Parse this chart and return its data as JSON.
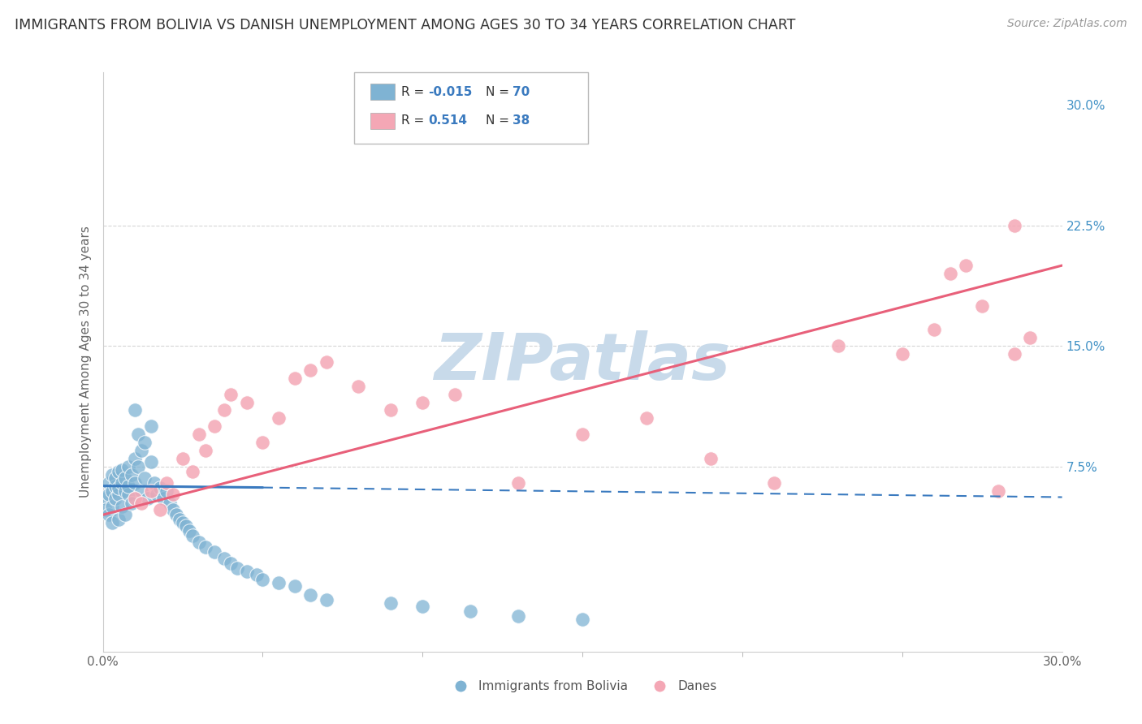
{
  "title": "IMMIGRANTS FROM BOLIVIA VS DANISH UNEMPLOYMENT AMONG AGES 30 TO 34 YEARS CORRELATION CHART",
  "source": "Source: ZipAtlas.com",
  "ylabel": "Unemployment Among Ages 30 to 34 years",
  "xlim": [
    0.0,
    0.3
  ],
  "ylim": [
    -0.04,
    0.32
  ],
  "legend_label1": "Immigrants from Bolivia",
  "legend_label2": "Danes",
  "R1": "-0.015",
  "N1": "70",
  "R2": "0.514",
  "N2": "38",
  "blue_color": "#7fb3d3",
  "pink_color": "#f4a7b5",
  "blue_line_color": "#3a7abf",
  "pink_line_color": "#e8607a",
  "grid_color": "#cccccc",
  "blue_scatter_x": [
    0.001,
    0.001,
    0.002,
    0.002,
    0.002,
    0.003,
    0.003,
    0.003,
    0.003,
    0.004,
    0.004,
    0.004,
    0.005,
    0.005,
    0.005,
    0.005,
    0.006,
    0.006,
    0.006,
    0.007,
    0.007,
    0.007,
    0.008,
    0.008,
    0.008,
    0.009,
    0.009,
    0.01,
    0.01,
    0.01,
    0.011,
    0.011,
    0.012,
    0.012,
    0.013,
    0.013,
    0.014,
    0.015,
    0.015,
    0.016,
    0.017,
    0.018,
    0.019,
    0.02,
    0.021,
    0.022,
    0.023,
    0.024,
    0.025,
    0.026,
    0.027,
    0.028,
    0.03,
    0.032,
    0.035,
    0.038,
    0.04,
    0.042,
    0.045,
    0.048,
    0.05,
    0.055,
    0.06,
    0.065,
    0.07,
    0.09,
    0.1,
    0.115,
    0.13,
    0.15
  ],
  "blue_scatter_y": [
    0.055,
    0.048,
    0.065,
    0.045,
    0.058,
    0.06,
    0.07,
    0.05,
    0.04,
    0.063,
    0.055,
    0.068,
    0.072,
    0.058,
    0.062,
    0.042,
    0.065,
    0.073,
    0.05,
    0.068,
    0.06,
    0.045,
    0.075,
    0.058,
    0.063,
    0.07,
    0.052,
    0.11,
    0.08,
    0.065,
    0.095,
    0.075,
    0.085,
    0.06,
    0.09,
    0.068,
    0.055,
    0.1,
    0.078,
    0.065,
    0.058,
    0.062,
    0.055,
    0.06,
    0.052,
    0.048,
    0.045,
    0.042,
    0.04,
    0.038,
    0.035,
    0.032,
    0.028,
    0.025,
    0.022,
    0.018,
    0.015,
    0.012,
    0.01,
    0.008,
    0.005,
    0.003,
    0.001,
    -0.005,
    -0.008,
    -0.01,
    -0.012,
    -0.015,
    -0.018,
    -0.02
  ],
  "pink_scatter_x": [
    0.01,
    0.012,
    0.015,
    0.018,
    0.02,
    0.022,
    0.025,
    0.028,
    0.03,
    0.032,
    0.035,
    0.038,
    0.04,
    0.045,
    0.05,
    0.055,
    0.06,
    0.065,
    0.07,
    0.08,
    0.09,
    0.1,
    0.11,
    0.13,
    0.15,
    0.17,
    0.19,
    0.21,
    0.23,
    0.25,
    0.26,
    0.265,
    0.27,
    0.275,
    0.28,
    0.285,
    0.285,
    0.29
  ],
  "pink_scatter_y": [
    0.055,
    0.052,
    0.06,
    0.048,
    0.065,
    0.058,
    0.08,
    0.072,
    0.095,
    0.085,
    0.1,
    0.11,
    0.12,
    0.115,
    0.09,
    0.105,
    0.13,
    0.135,
    0.14,
    0.125,
    0.11,
    0.115,
    0.12,
    0.065,
    0.095,
    0.105,
    0.08,
    0.065,
    0.15,
    0.145,
    0.16,
    0.195,
    0.2,
    0.175,
    0.06,
    0.145,
    0.225,
    0.155
  ],
  "blue_trend_x": [
    0.0,
    0.05,
    0.3
  ],
  "blue_trend_y": [
    0.063,
    0.062,
    0.056
  ],
  "pink_trend_x": [
    0.0,
    0.3
  ],
  "pink_trend_y": [
    0.045,
    0.2
  ]
}
